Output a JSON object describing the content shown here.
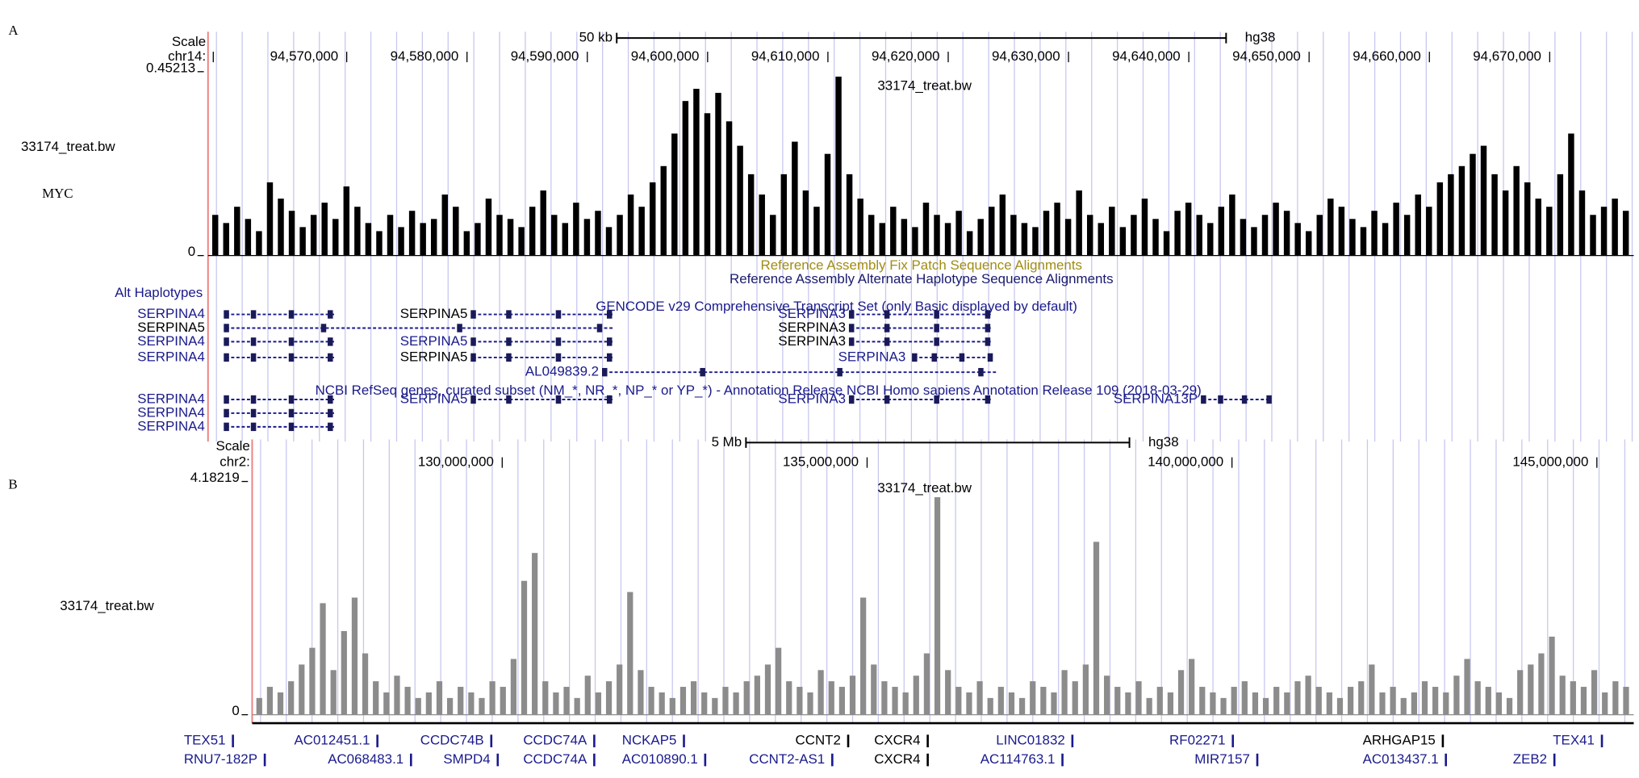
{
  "panels": [
    {
      "letter": "A",
      "scale_label": "Scale",
      "chrom": "chr14:",
      "scale_bar": "50 kb",
      "assembly": "hg38",
      "positions": [
        "94,570,000",
        "94,580,000",
        "94,590,000",
        "94,600,000",
        "94,610,000",
        "94,620,000",
        "94,630,000",
        "94,640,000",
        "94,650,000",
        "94,660,000",
        "94,670,000"
      ],
      "track_title": "33174_treat.bw",
      "track_label": "33174_treat.bw",
      "track_note": "MYC",
      "ylim": [
        0,
        0.45213
      ],
      "yticks": [
        0,
        0.45213
      ],
      "color": "#000000",
      "signal": [
        0.1,
        0.08,
        0.12,
        0.09,
        0.06,
        0.18,
        0.14,
        0.11,
        0.07,
        0.1,
        0.13,
        0.09,
        0.17,
        0.12,
        0.08,
        0.06,
        0.1,
        0.07,
        0.11,
        0.08,
        0.09,
        0.15,
        0.12,
        0.06,
        0.08,
        0.14,
        0.1,
        0.09,
        0.07,
        0.12,
        0.16,
        0.1,
        0.08,
        0.13,
        0.09,
        0.11,
        0.07,
        0.1,
        0.15,
        0.12,
        0.18,
        0.22,
        0.3,
        0.38,
        0.41,
        0.35,
        0.4,
        0.33,
        0.27,
        0.2,
        0.15,
        0.1,
        0.2,
        0.28,
        0.16,
        0.12,
        0.25,
        0.44,
        0.2,
        0.14,
        0.1,
        0.08,
        0.12,
        0.09,
        0.07,
        0.13,
        0.1,
        0.08,
        0.11,
        0.06,
        0.09,
        0.12,
        0.15,
        0.1,
        0.08,
        0.07,
        0.11,
        0.13,
        0.09,
        0.16,
        0.1,
        0.08,
        0.12,
        0.07,
        0.1,
        0.14,
        0.09,
        0.06,
        0.11,
        0.13,
        0.1,
        0.08,
        0.12,
        0.15,
        0.09,
        0.07,
        0.1,
        0.13,
        0.11,
        0.08,
        0.06,
        0.1,
        0.14,
        0.12,
        0.09,
        0.07,
        0.11,
        0.08,
        0.13,
        0.1,
        0.15,
        0.12,
        0.18,
        0.2,
        0.22,
        0.25,
        0.27,
        0.2,
        0.16,
        0.22,
        0.18,
        0.14,
        0.12,
        0.2,
        0.3,
        0.16,
        0.1,
        0.12,
        0.14,
        0.11
      ],
      "annotations": [
        "Reference Assembly Fix Patch Sequence Alignments",
        "Reference Assembly Alternate Haplotype Sequence Alignments",
        "Alt Haplotypes",
        "GENCODE v29 Comprehensive Transcript Set (only Basic displayed by default)",
        "NCBI RefSeq genes, curated subset (NM_*, NR_*, NP_* or YP_*) - Annotation Release NCBI Homo sapiens Annotation Release 109 (2018-03-29)"
      ],
      "annotation_colors": [
        "#a08c14",
        "#1a1a6e",
        "#1a1a8c",
        "#1a1a8c",
        "#1a1a8c"
      ],
      "genes": [
        {
          "label": "SERPINA4",
          "color": "#1a1a8c"
        },
        {
          "label": "SERPINA5",
          "color": "#000000"
        },
        {
          "label": "SERPINA4",
          "color": "#1a1a8c"
        },
        {
          "label": "SERPINA4",
          "color": "#1a1a8c"
        },
        {
          "label": "SERPINA5",
          "color": "#000000"
        },
        {
          "label": "SERPINA5",
          "color": "#1a1a8c"
        },
        {
          "label": "SERPINA5",
          "color": "#000000"
        },
        {
          "label": "SERPINA3",
          "color": "#1a1a8c"
        },
        {
          "label": "SERPINA3",
          "color": "#000000"
        },
        {
          "label": "SERPINA3",
          "color": "#000000"
        },
        {
          "label": "SERPINA3",
          "color": "#1a1a8c"
        },
        {
          "label": "AL049839.2",
          "color": "#1a1a8c"
        },
        {
          "label": "SERPINA4",
          "color": "#1a1a8c"
        },
        {
          "label": "SERPINA4",
          "color": "#1a1a8c"
        },
        {
          "label": "SERPINA4",
          "color": "#1a1a8c"
        },
        {
          "label": "SERPINA5",
          "color": "#1a1a8c"
        },
        {
          "label": "SERPINA3",
          "color": "#1a1a8c"
        },
        {
          "label": "SERPINA13P",
          "color": "#1a1a8c"
        }
      ]
    },
    {
      "letter": "B",
      "scale_label": "Scale",
      "chrom": "chr2:",
      "scale_bar": "5 Mb",
      "assembly": "hg38",
      "positions": [
        "130,000,000",
        "135,000,000",
        "140,000,000",
        "145,000,000"
      ],
      "track_title": "33174_treat.bw",
      "track_label": "33174_treat.bw",
      "ylim": [
        0,
        4.18219
      ],
      "yticks": [
        0,
        4.18219
      ],
      "color": "#8c8c8c",
      "signal": [
        0.3,
        0.5,
        0.4,
        0.6,
        0.9,
        1.2,
        2.0,
        0.8,
        1.5,
        2.1,
        1.1,
        0.6,
        0.4,
        0.7,
        0.5,
        0.3,
        0.4,
        0.6,
        0.3,
        0.5,
        0.4,
        0.3,
        0.6,
        0.5,
        1.0,
        2.4,
        2.9,
        0.6,
        0.4,
        0.5,
        0.3,
        0.7,
        0.4,
        0.6,
        0.9,
        2.2,
        0.8,
        0.5,
        0.4,
        0.3,
        0.5,
        0.6,
        0.4,
        0.3,
        0.5,
        0.4,
        0.6,
        0.7,
        0.9,
        1.2,
        0.6,
        0.5,
        0.4,
        0.8,
        0.6,
        0.5,
        0.7,
        2.1,
        0.9,
        0.6,
        0.5,
        0.4,
        0.7,
        1.1,
        3.9,
        0.8,
        0.5,
        0.4,
        0.6,
        0.3,
        0.5,
        0.4,
        0.3,
        0.6,
        0.5,
        0.4,
        0.8,
        0.6,
        0.9,
        3.1,
        0.7,
        0.5,
        0.4,
        0.6,
        0.3,
        0.5,
        0.4,
        0.8,
        1.0,
        0.5,
        0.4,
        0.3,
        0.5,
        0.6,
        0.4,
        0.3,
        0.5,
        0.4,
        0.6,
        0.7,
        0.5,
        0.4,
        0.3,
        0.5,
        0.6,
        0.9,
        0.4,
        0.5,
        0.3,
        0.4,
        0.6,
        0.5,
        0.4,
        0.7,
        1.0,
        0.6,
        0.5,
        0.4,
        0.3,
        0.8,
        0.9,
        1.1,
        1.4,
        0.7,
        0.6,
        0.5,
        0.8,
        0.4,
        0.6,
        0.5
      ],
      "genes": [
        {
          "label": "TEX51",
          "color": "#1a1a8c"
        },
        {
          "label": "AC012451.1",
          "color": "#1a1a8c"
        },
        {
          "label": "CCDC74B",
          "color": "#1a1a8c"
        },
        {
          "label": "CCDC74A",
          "color": "#1a1a8c"
        },
        {
          "label": "NCKAP5",
          "color": "#1a1a8c"
        },
        {
          "label": "CCNT2",
          "color": "#000000"
        },
        {
          "label": "CXCR4",
          "color": "#000000"
        },
        {
          "label": "LINC01832",
          "color": "#1a1a8c"
        },
        {
          "label": "RF02271",
          "color": "#1a1a8c"
        },
        {
          "label": "ARHGAP15",
          "color": "#000000"
        },
        {
          "label": "TEX41",
          "color": "#1a1a8c"
        },
        {
          "label": "RNU7-182P",
          "color": "#1a1a8c"
        },
        {
          "label": "AC068483.1",
          "color": "#1a1a8c"
        },
        {
          "label": "SMPD4",
          "color": "#1a1a8c"
        },
        {
          "label": "CCDC74A",
          "color": "#1a1a8c"
        },
        {
          "label": "AC010890.1",
          "color": "#1a1a8c"
        },
        {
          "label": "CCNT2-AS1",
          "color": "#1a1a8c"
        },
        {
          "label": "CXCR4",
          "color": "#000000"
        },
        {
          "label": "AC114763.1",
          "color": "#1a1a8c"
        },
        {
          "label": "MIR7157",
          "color": "#1a1a8c"
        },
        {
          "label": "AC013437.1",
          "color": "#1a1a8c"
        },
        {
          "label": "ZEB2",
          "color": "#1a1a8c"
        }
      ]
    }
  ]
}
